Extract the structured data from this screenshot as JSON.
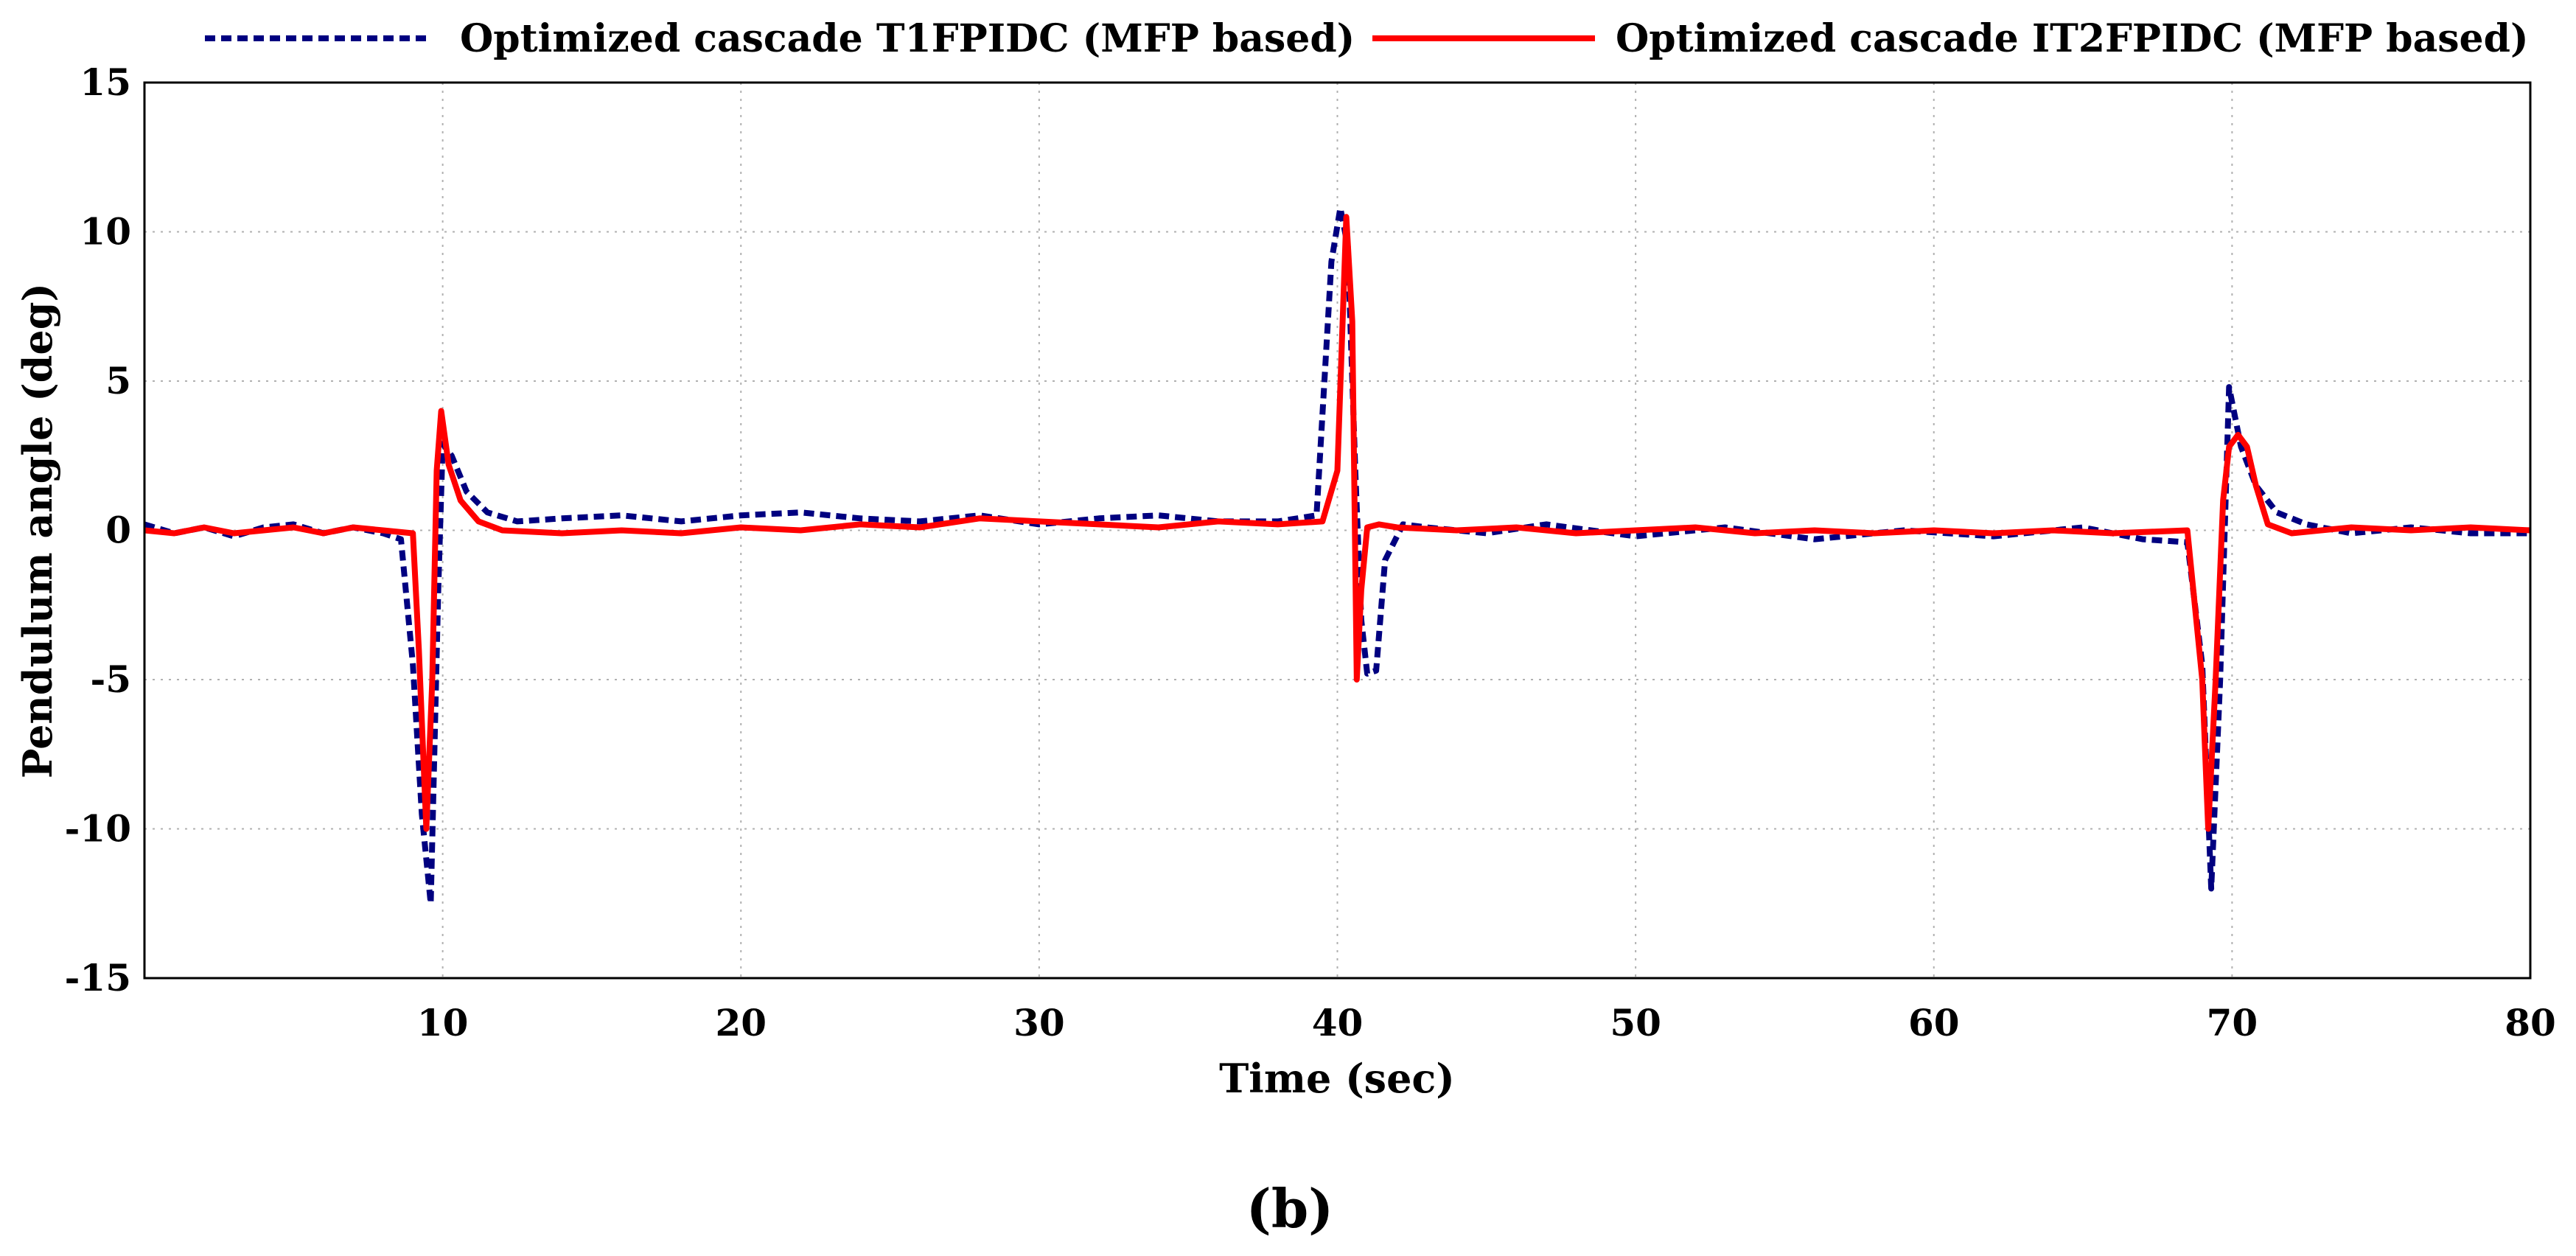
{
  "panel_label": "(b)",
  "chart_data": {
    "type": "line",
    "title": "",
    "xlabel": "Time (sec)",
    "ylabel": "Pendulum angle (deg)",
    "xlim": [
      0,
      80
    ],
    "ylim": [
      -15,
      15
    ],
    "xticks": [
      10,
      20,
      30,
      40,
      50,
      60,
      70,
      80
    ],
    "yticks": [
      -15,
      -10,
      -5,
      0,
      5,
      10,
      15
    ],
    "grid": true,
    "legend_position": "top",
    "series": [
      {
        "name": "Optimized cascade T1FPIDC (MFP based)",
        "color": "#000080",
        "style": "dashed",
        "x": [
          0,
          1,
          2,
          3,
          4,
          5,
          6,
          7,
          8,
          8.6,
          9.0,
          9.3,
          9.6,
          9.85,
          10.0,
          10.3,
          10.8,
          11.5,
          12.5,
          14,
          16,
          18,
          20,
          22,
          24,
          26,
          28,
          30,
          32,
          34,
          36,
          38,
          39.3,
          39.8,
          40.1,
          40.35,
          40.6,
          40.8,
          41.0,
          41.3,
          41.6,
          42.2,
          43,
          45,
          47,
          50,
          53,
          56,
          59,
          62,
          65,
          67,
          68.5,
          69.0,
          69.3,
          69.6,
          69.9,
          70.3,
          70.8,
          71.5,
          72.5,
          74,
          76,
          78,
          80
        ],
        "y": [
          0.2,
          -0.1,
          0.1,
          -0.2,
          0.1,
          0.2,
          -0.1,
          0.1,
          -0.1,
          -0.3,
          -4.5,
          -9.5,
          -12.5,
          -2.0,
          2.9,
          2.5,
          1.3,
          0.6,
          0.3,
          0.4,
          0.5,
          0.3,
          0.5,
          0.6,
          0.4,
          0.3,
          0.5,
          0.2,
          0.4,
          0.5,
          0.3,
          0.3,
          0.5,
          9.0,
          10.8,
          9.5,
          2.0,
          -3.0,
          -4.8,
          -4.7,
          -1.0,
          0.2,
          0.1,
          -0.1,
          0.2,
          -0.2,
          0.1,
          -0.3,
          0.0,
          -0.2,
          0.1,
          -0.3,
          -0.4,
          -4.5,
          -12.0,
          -5.0,
          4.8,
          2.8,
          1.5,
          0.6,
          0.2,
          -0.1,
          0.1,
          -0.1,
          -0.1
        ]
      },
      {
        "name": "Optimized cascade IT2FPIDC (MFP based)",
        "color": "#ff0000",
        "style": "solid",
        "x": [
          0,
          1,
          2,
          3,
          4,
          5,
          6,
          7,
          8,
          9.0,
          9.2,
          9.45,
          9.65,
          9.8,
          9.95,
          10.2,
          10.6,
          11.2,
          12,
          14,
          16,
          18,
          20,
          22,
          24,
          26,
          28,
          30,
          32,
          34,
          36,
          38,
          39.5,
          40.0,
          40.3,
          40.5,
          40.65,
          40.8,
          41.0,
          41.4,
          42,
          44,
          46,
          48,
          50,
          52,
          54,
          56,
          58,
          60,
          62,
          64,
          66,
          68.5,
          69.0,
          69.2,
          69.45,
          69.7,
          69.9,
          70.2,
          70.5,
          70.8,
          71.2,
          72,
          74,
          76,
          78,
          80
        ],
        "y": [
          0.0,
          -0.1,
          0.1,
          -0.1,
          0.0,
          0.1,
          -0.1,
          0.1,
          0.0,
          -0.1,
          -4.0,
          -10.0,
          -5.0,
          2.0,
          4.0,
          2.2,
          1.0,
          0.3,
          0.0,
          -0.1,
          0.0,
          -0.1,
          0.1,
          0.0,
          0.2,
          0.1,
          0.4,
          0.3,
          0.2,
          0.1,
          0.3,
          0.2,
          0.3,
          2.0,
          10.5,
          7.0,
          -5.0,
          -2.0,
          0.1,
          0.2,
          0.1,
          0.0,
          0.1,
          -0.1,
          0.0,
          0.1,
          -0.1,
          0.0,
          -0.1,
          0.0,
          -0.1,
          0.0,
          -0.1,
          0.0,
          -5.0,
          -10.0,
          -5.0,
          1.0,
          2.8,
          3.2,
          2.8,
          1.5,
          0.2,
          -0.1,
          0.1,
          0.0,
          0.1,
          0.0
        ]
      }
    ]
  }
}
